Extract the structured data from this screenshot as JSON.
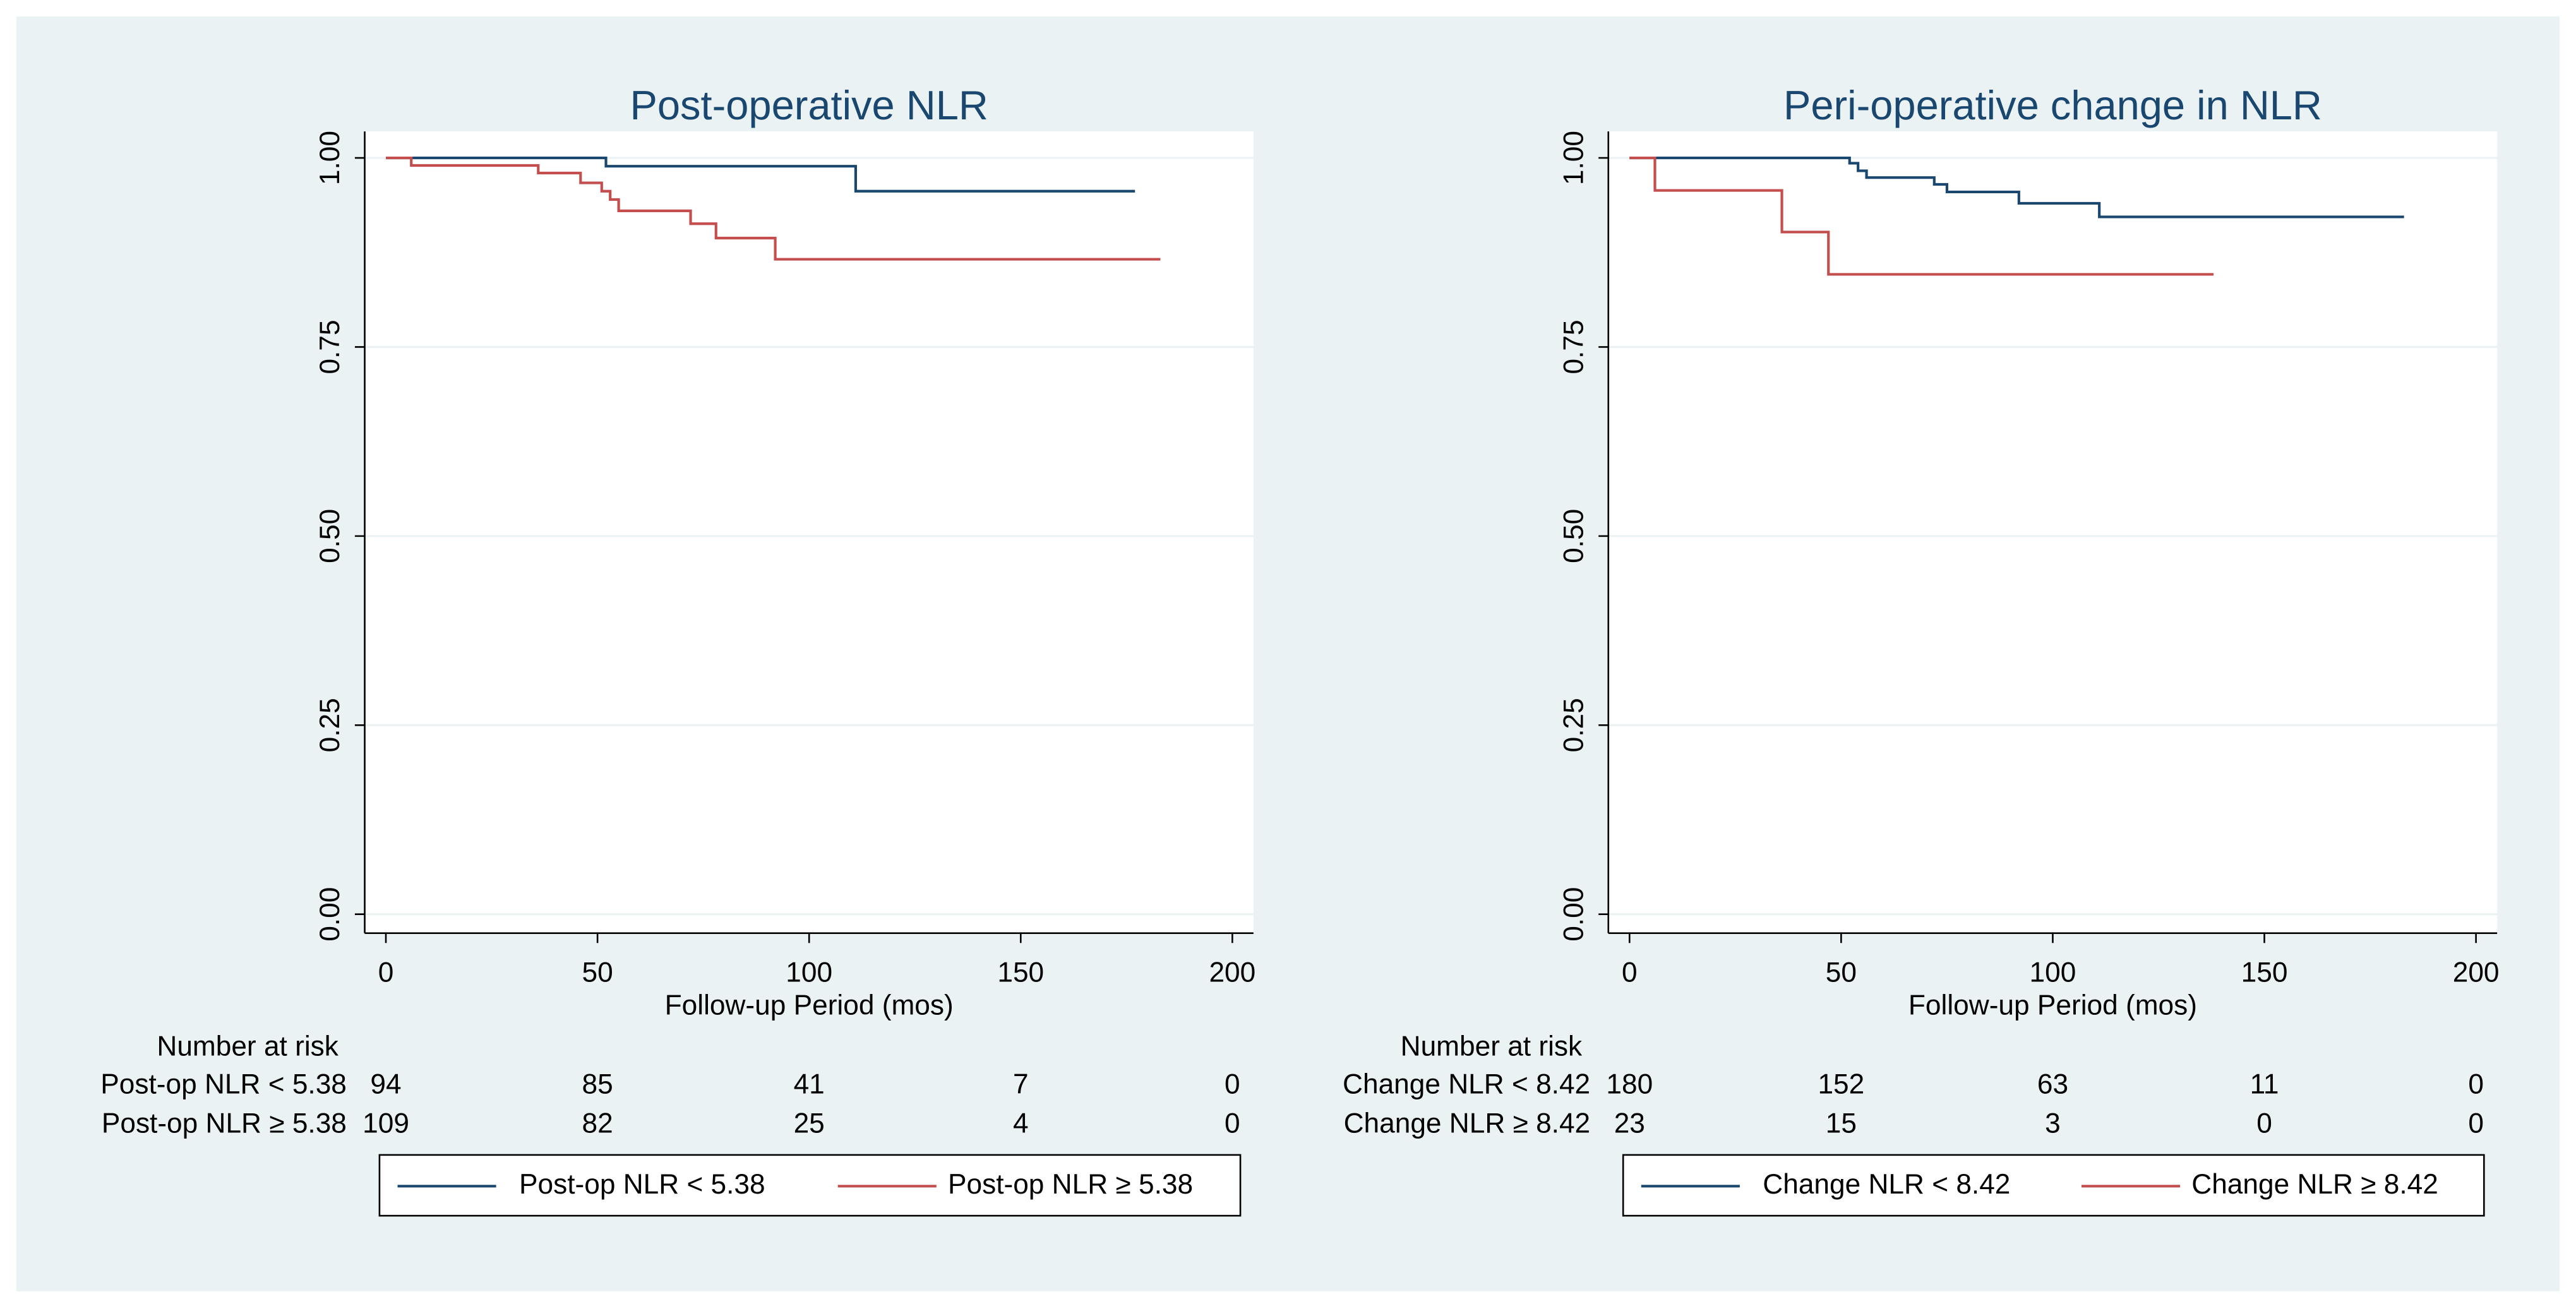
{
  "chart_data": [
    {
      "type": "step",
      "title": "Post-operative NLR",
      "xlabel": "Follow-up Period (mos)",
      "xlim": [
        -5,
        205
      ],
      "xticks": [
        0,
        50,
        100,
        150,
        200
      ],
      "ylim": [
        -0.025,
        1.035
      ],
      "yticks": [
        {
          "value": 0,
          "label": "0.00"
        },
        {
          "value": 0.25,
          "label": "0.25"
        },
        {
          "value": 0.5,
          "label": "0.50"
        },
        {
          "value": 0.75,
          "label": "0.75"
        },
        {
          "value": 1,
          "label": "1.00"
        }
      ],
      "grid": true,
      "series": [
        {
          "name": "Post-op NLR < 5.38",
          "color": "#1a476f",
          "x": [
            0,
            52,
            111,
            177
          ],
          "values": [
            1,
            0.989,
            0.956,
            0.956
          ]
        },
        {
          "name": "Post-op NLR ≥ 5.38",
          "color": "#c44e4e",
          "x": [
            0,
            6,
            36,
            46,
            51,
            53,
            55,
            72,
            78,
            92,
            183
          ],
          "values": [
            1,
            0.99,
            0.98,
            0.967,
            0.956,
            0.945,
            0.93,
            0.913,
            0.894,
            0.866,
            0.866
          ]
        }
      ],
      "risk_table": {
        "title": "Number at risk",
        "rows": [
          [
            94,
            85,
            41,
            7,
            0
          ],
          [
            109,
            82,
            25,
            4,
            0
          ]
        ]
      }
    },
    {
      "type": "step",
      "title": "Peri-operative change in NLR",
      "xlabel": "Follow-up Period (mos)",
      "xlim": [
        -5,
        205
      ],
      "xticks": [
        0,
        50,
        100,
        150,
        200
      ],
      "ylim": [
        -0.025,
        1.035
      ],
      "yticks": [
        {
          "value": 0,
          "label": "0.00"
        },
        {
          "value": 0.25,
          "label": "0.25"
        },
        {
          "value": 0.5,
          "label": "0.50"
        },
        {
          "value": 0.75,
          "label": "0.75"
        },
        {
          "value": 1,
          "label": "1.00"
        }
      ],
      "grid": true,
      "series": [
        {
          "name": "Change NLR < 8.42",
          "color": "#1a476f",
          "x": [
            0,
            52,
            54,
            56,
            72,
            75,
            92,
            111,
            183
          ],
          "values": [
            1,
            0.993,
            0.983,
            0.974,
            0.965,
            0.955,
            0.94,
            0.922,
            0.922
          ]
        },
        {
          "name": "Change NLR ≥ 8.42",
          "color": "#c44e4e",
          "x": [
            0,
            6,
            36,
            47,
            138
          ],
          "values": [
            1,
            0.957,
            0.902,
            0.846,
            0.846
          ]
        }
      ],
      "risk_table": {
        "title": "Number at risk",
        "rows": [
          [
            180,
            152,
            63,
            11,
            0
          ],
          [
            23,
            15,
            3,
            0,
            0
          ]
        ]
      }
    }
  ]
}
